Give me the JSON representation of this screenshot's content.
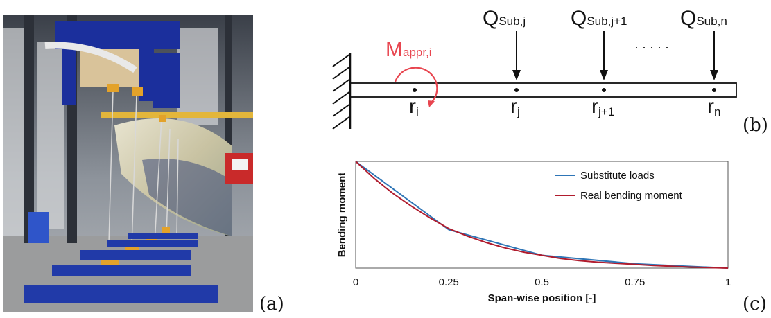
{
  "labels": {
    "a": "(a)",
    "b": "(b)",
    "c": "(c)"
  },
  "diagram": {
    "moment": {
      "main": "M",
      "sub": "appr,i"
    },
    "loads": [
      {
        "main": "Q",
        "sub": "Sub,j"
      },
      {
        "main": "Q",
        "sub": "Sub,j+1"
      },
      {
        "main": "Q",
        "sub": "Sub,n"
      }
    ],
    "ellipsis": "· · · · ·",
    "positions": [
      {
        "main": "r",
        "sub": "i"
      },
      {
        "main": "r",
        "sub": "j"
      },
      {
        "main": "r",
        "sub": "j+1"
      },
      {
        "main": "r",
        "sub": "n"
      }
    ],
    "colors": {
      "moment": "#e8454f",
      "beam": "#111111"
    }
  },
  "chart_data": {
    "type": "line",
    "xlabel": "Span-wise position [-]",
    "ylabel": "Bending moment",
    "xlim": [
      0,
      1
    ],
    "xticks": [
      "0",
      "0.25",
      "0.5",
      "0.75",
      "1"
    ],
    "legend_position": "top-right",
    "series": [
      {
        "name": "Substitute loads",
        "color": "#2e75b6",
        "x": [
          0,
          0.25,
          0.5,
          0.75,
          1
        ],
        "y": [
          1.0,
          0.36,
          0.12,
          0.04,
          0.0
        ]
      },
      {
        "name": "Real bending moment",
        "color": "#b01c2e",
        "x": [
          0,
          0.05,
          0.1,
          0.15,
          0.2,
          0.25,
          0.3,
          0.35,
          0.4,
          0.45,
          0.5,
          0.55,
          0.6,
          0.65,
          0.7,
          0.75,
          0.8,
          0.85,
          0.9,
          0.95,
          1
        ],
        "y": [
          1.0,
          0.84,
          0.7,
          0.58,
          0.47,
          0.37,
          0.3,
          0.24,
          0.19,
          0.15,
          0.12,
          0.09,
          0.07,
          0.055,
          0.045,
          0.035,
          0.025,
          0.017,
          0.01,
          0.005,
          0.0
        ]
      }
    ]
  }
}
